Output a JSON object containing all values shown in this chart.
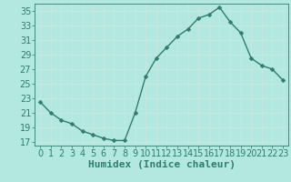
{
  "x": [
    0,
    1,
    2,
    3,
    4,
    5,
    6,
    7,
    8,
    9,
    10,
    11,
    12,
    13,
    14,
    15,
    16,
    17,
    18,
    19,
    20,
    21,
    22,
    23
  ],
  "y": [
    22.5,
    21.0,
    20.0,
    19.5,
    18.5,
    18.0,
    17.5,
    17.2,
    17.2,
    21.0,
    26.0,
    28.5,
    30.0,
    31.5,
    32.5,
    34.0,
    34.5,
    35.5,
    33.5,
    32.0,
    28.5,
    27.5,
    27.0,
    25.5
  ],
  "line_color": "#2e7d6e",
  "marker": "D",
  "marker_size": 2.5,
  "bg_color": "#b3e8e0",
  "grid_color": "#c8e8e0",
  "title": "",
  "xlabel": "Humidex (Indice chaleur)",
  "ylabel": "",
  "xlim": [
    -0.5,
    23.5
  ],
  "ylim": [
    16.5,
    36.0
  ],
  "yticks": [
    17,
    19,
    21,
    23,
    25,
    27,
    29,
    31,
    33,
    35
  ],
  "xticks": [
    0,
    1,
    2,
    3,
    4,
    5,
    6,
    7,
    8,
    9,
    10,
    11,
    12,
    13,
    14,
    15,
    16,
    17,
    18,
    19,
    20,
    21,
    22,
    23
  ],
  "tick_color": "#2e7d6e",
  "xlabel_fontsize": 8,
  "tick_fontsize": 7,
  "linewidth": 1.0
}
